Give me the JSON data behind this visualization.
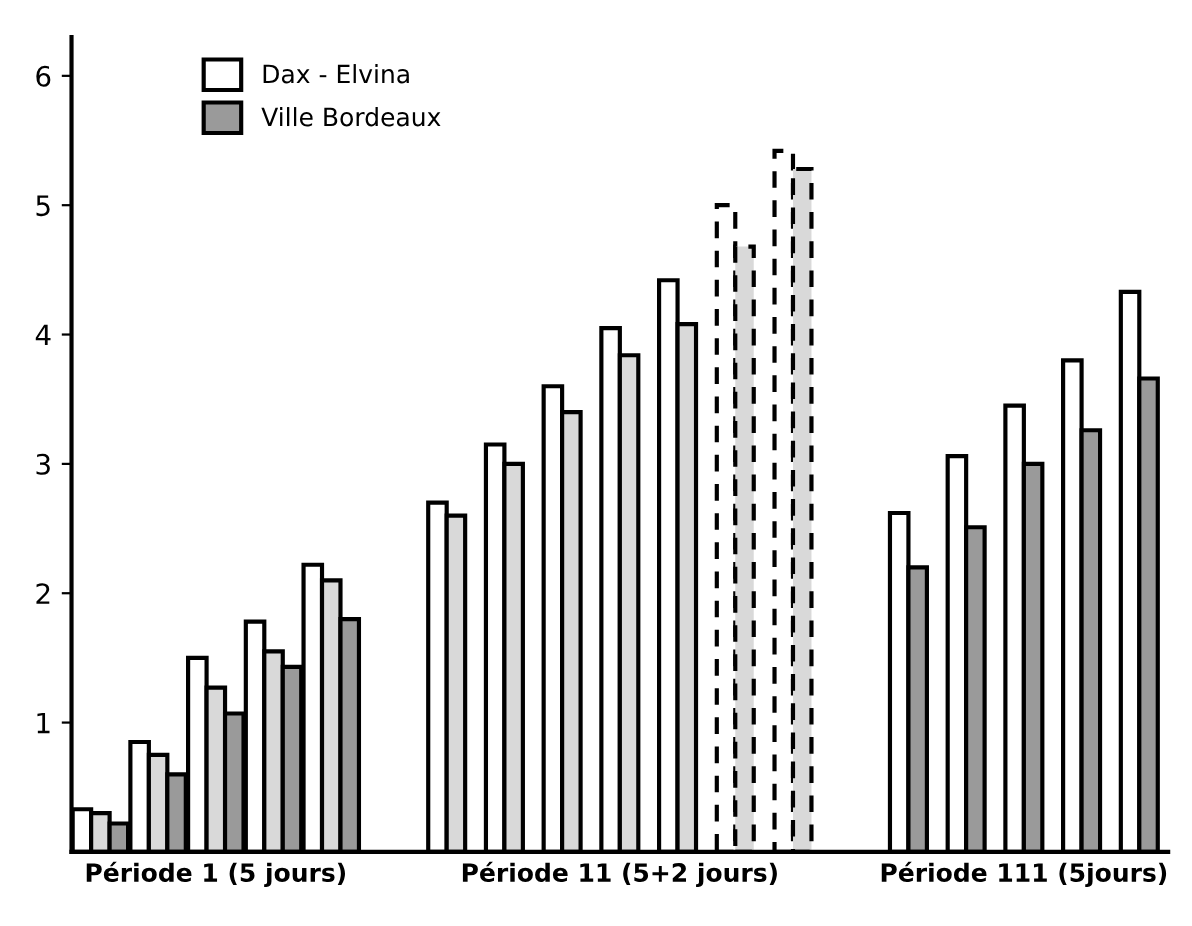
{
  "chart_data": {
    "type": "bar",
    "categories": [
      null,
      null,
      "Période 1 (5 jours)",
      null,
      null,
      null,
      null,
      null,
      null,
      "Période 11 (5+2 jours)",
      null,
      null,
      null,
      null,
      null,
      null,
      "Période 111 (5jours)",
      null,
      null
    ],
    "ylim": [
      0,
      6.3
    ],
    "yticks": [
      1,
      2,
      3,
      4,
      5,
      6
    ],
    "grid": false,
    "legend": "top left",
    "series": [
      {
        "name": "Dax - Elvina",
        "color": "#ffffff",
        "values": [
          0.33,
          0.85,
          1.5,
          1.78,
          2.22,
          null,
          2.7,
          3.15,
          3.6,
          4.05,
          4.42,
          null,
          null,
          null,
          2.62,
          3.06,
          3.45,
          3.8,
          4.33
        ]
      },
      {
        "color": "#d9d9d9",
        "values": [
          0.3,
          0.75,
          1.27,
          1.55,
          2.1,
          null,
          2.6,
          3.0,
          3.4,
          3.84,
          4.08,
          null,
          null,
          null,
          null,
          null,
          null,
          null,
          null
        ]
      },
      {
        "name": "Ville Bordeaux",
        "color": "#9a9a9a",
        "values": [
          0.22,
          0.6,
          1.07,
          1.43,
          1.8,
          null,
          null,
          null,
          null,
          null,
          null,
          null,
          null,
          null,
          2.2,
          2.51,
          3.0,
          3.26,
          3.66
        ]
      },
      {
        "color": "#ffffff",
        "line_style": "dashed",
        "values": [
          null,
          null,
          null,
          null,
          null,
          null,
          null,
          null,
          null,
          null,
          null,
          5.0,
          5.42,
          null,
          null,
          null,
          null,
          null,
          null
        ]
      },
      {
        "color": "#d9d9d9",
        "line_style": "dashed",
        "values": [
          null,
          null,
          null,
          null,
          null,
          null,
          null,
          null,
          null,
          null,
          null,
          4.68,
          5.28,
          null,
          null,
          null,
          null,
          null,
          null
        ]
      }
    ]
  }
}
